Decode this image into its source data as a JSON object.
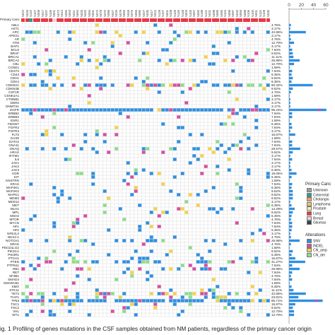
{
  "primary_cancer_label": "Primary Cancer",
  "samples": [
    "N022",
    "N033",
    "N142",
    "N107",
    "N008",
    "N017",
    "N037",
    "N106",
    "N001",
    "N072",
    "N014",
    "N094",
    "N063",
    "N011",
    "N064",
    "N033",
    "N040",
    "N094",
    "N001",
    "N074",
    "N078",
    "N070",
    "N086",
    "N047",
    "N026",
    "N079",
    "N065",
    "N049",
    "N076",
    "N056",
    "N080",
    "N027",
    "N035",
    "N017",
    "N024",
    "N129",
    "N107",
    "N001",
    "N108",
    "N105",
    "N146",
    "N148",
    "N003",
    "N100",
    "N067",
    "N050",
    "N198",
    "N121",
    "N031",
    "N099",
    "N095",
    "N090",
    "N104",
    "N089",
    "N097",
    "N032",
    "N065",
    "N088",
    "N106",
    "N100",
    "N001",
    "N115",
    "N109",
    "N030"
  ],
  "genes": [
    "ABL1",
    "AKT1",
    "APC",
    "APEX1",
    "AR",
    "ATM",
    "BAP1",
    "BCL9",
    "BRAF",
    "BRCA1",
    "BRCA2",
    "CBL",
    "CCNE1",
    "CD274",
    "CD44",
    "CDH1",
    "CDK4",
    "CDKN2A",
    "CDKN2B",
    "CSF1R",
    "CSNK2A1",
    "CTNNB1",
    "DDR2",
    "DNMT3A",
    "EGFR",
    "ERBB2",
    "ERBB3",
    "ESR1",
    "FBXW7",
    "FGFR2",
    "FGFR3",
    "FLT3",
    "GAS6",
    "GATA2",
    "GNA11",
    "GNAQ",
    "HRAS",
    "IFITM1",
    "IL6",
    "JAK1",
    "JAK2",
    "JAK3",
    "KDR",
    "KIT",
    "KNSTRN",
    "KRAS",
    "MAP2K1",
    "MAP2K2",
    "MAPK1",
    "MDM2",
    "MED12",
    "MET",
    "MLH1",
    "MPL",
    "MSH2",
    "MTOR",
    "MYCN",
    "NF1",
    "NF2",
    "NFE2L2",
    "NKX2-1",
    "NOTCH1",
    "NRAS",
    "PDCD1LG2",
    "PIK3CA",
    "PIK3R1",
    "PTCH1",
    "PTEN",
    "PTPN11",
    "RB1",
    "RET",
    "SF3B1",
    "SMAD4",
    "SMARCB1",
    "SMO",
    "STK11",
    "TET2",
    "TIAF1",
    "TP53",
    "TSC1",
    "TSC2",
    "VHL",
    "WT1"
  ],
  "percentages": [
    "4.76%",
    "3.17%",
    "42.86%",
    "3.17%",
    "4.76%",
    "12.70%",
    "3.17%",
    "7.94%",
    "9.52%",
    "11.11%",
    "26.98%",
    "12.70%",
    "1.59%",
    "7.94%",
    "6.35%",
    "9.52%",
    "6.35%",
    "60.32%",
    "9.52%",
    "4.76%",
    "1.59%",
    "3.17%",
    "3.17%",
    "3.17%",
    "95.24%",
    "7.94%",
    "7.94%",
    "1.59%",
    "6.35%",
    "7.94%",
    "3.17%",
    "15.87%",
    "1.59%",
    "7.94%",
    "7.94%",
    "28.57%",
    "9.52%",
    "3.17%",
    "7.94%",
    "3.17%",
    "3.17%",
    "6.35%",
    "19.05%",
    "6.35%",
    "1.59%",
    "7.94%",
    "6.35%",
    "9.52%",
    "9.52%",
    "9.52%",
    "3.17%",
    "6.35%",
    "14.29%",
    "9.52%",
    "6.35%",
    "4.76%",
    "7.94%",
    "7.94%",
    "6.35%",
    "3.17%",
    "4.76%",
    "26.98%",
    "4.76%",
    "1.59%",
    "9.52%",
    "6.35%",
    "15.87%",
    "41.27%",
    "7.94%",
    "26.98%",
    "7.94%",
    "4.76%",
    "7.94%",
    "1.59%",
    "6.35%",
    "11.11%",
    "42.86%",
    "23.81%",
    "85.71%",
    "15.87%",
    "9.52%",
    "12.70%",
    "12.70%"
  ],
  "cancer_types": [
    "Lung",
    "Lung",
    "Colorectal",
    "Lung",
    "Lung",
    "Lung",
    "Lung",
    "Lung",
    "Breast",
    "Lung",
    "Lung",
    "Lung",
    "Lung",
    "Lung",
    "Lung",
    "Lung",
    "Lung",
    "Lung",
    "Lung",
    "Lung",
    "Lung",
    "Lung",
    "Lung",
    "Lung",
    "Lung",
    "Lung",
    "Lung",
    "Lung",
    "Lung",
    "Lung",
    "Lung",
    "Lung",
    "Lung",
    "Lung",
    "Lung",
    "Lung",
    "Lung",
    "Lung",
    "Lung",
    "Lung",
    "Lung",
    "Lung",
    "Lung",
    "Lung",
    "Lung",
    "Lung",
    "Lung",
    "Lung",
    "Lung",
    "Lung",
    "Lung",
    "Lung",
    "Lung",
    "Lung",
    "Lung",
    "Lung",
    "Lung",
    "Lung",
    "Lung",
    "Lung",
    "Lung",
    "Lung",
    "Lung",
    "Lung"
  ],
  "bar_axis_ticks": [
    "0",
    "20",
    "40",
    "60"
  ],
  "legend": {
    "cancer_title": "Primary Canc",
    "cancer_items": [
      {
        "label": "Unknown",
        "color": "#9e9e9e"
      },
      {
        "label": "Colorectal",
        "color": "#2a9d8f"
      },
      {
        "label": "Cholangio",
        "color": "#f4a261"
      },
      {
        "label": "Lymphoma",
        "color": "#e9c46a"
      },
      {
        "label": "Prostate",
        "color": "#f1f1a0"
      },
      {
        "label": "Lung",
        "color": "#e63946"
      },
      {
        "label": "Breast",
        "color": "#f9c9d4"
      },
      {
        "label": "Gliomas",
        "color": "#264653"
      }
    ],
    "alt_title": "Alterations",
    "alt_items": [
      {
        "label": "SNV",
        "color": "#2f8fe0"
      },
      {
        "label": "INDEL",
        "color": "#d64fa0"
      },
      {
        "label": "CN_amp",
        "color": "#f2d24b"
      },
      {
        "label": "CN_del",
        "color": "#8ddc8a"
      }
    ]
  },
  "colors": {
    "snv": "#2f8fe0",
    "indel": "#d64fa0",
    "amp": "#f2d24b",
    "del": "#8ddc8a",
    "grid": "#cfcfcf",
    "lung": "#e63946"
  },
  "caption": "ig. 1  Profiling of genes mutations in the CSF samples obtained from NM patients, regardless of the primary cancer origin"
}
